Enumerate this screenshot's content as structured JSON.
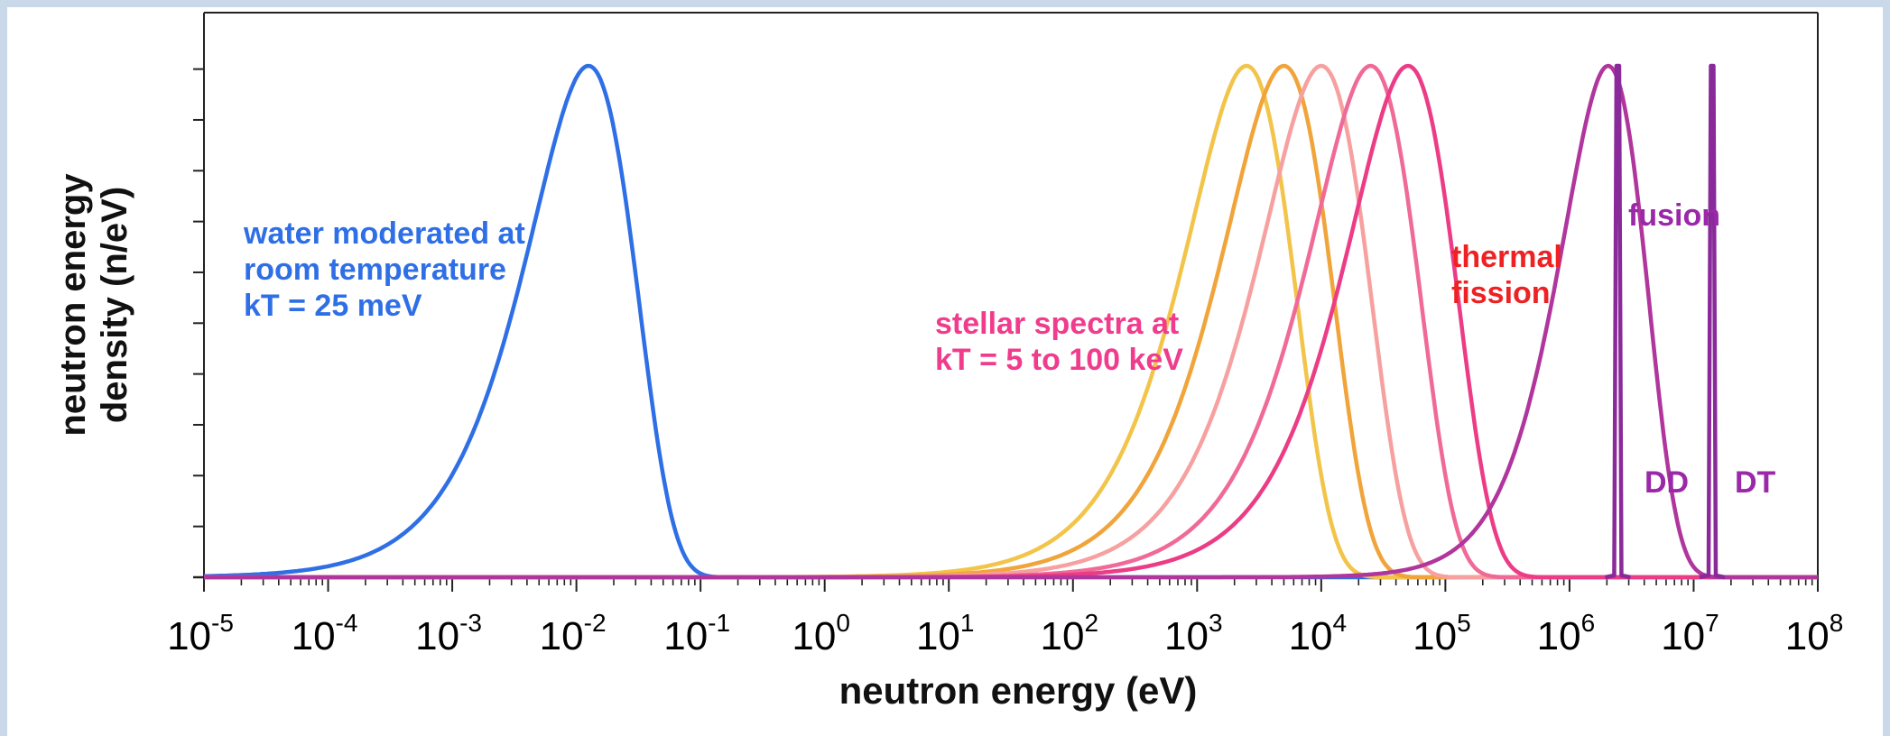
{
  "chart_data": {
    "type": "line",
    "xscale": "log",
    "xlim": [
      1e-05,
      100000000.0
    ],
    "xlabel": "neutron energy (eV)",
    "ylabel_lines": [
      "neutron energy",
      "density (n/eV)"
    ],
    "x_ticks": [
      {
        "base": "10",
        "exp": "-5"
      },
      {
        "base": "10",
        "exp": "-4"
      },
      {
        "base": "10",
        "exp": "-3"
      },
      {
        "base": "10",
        "exp": "-2"
      },
      {
        "base": "10",
        "exp": "-1"
      },
      {
        "base": "10",
        "exp": "0"
      },
      {
        "base": "10",
        "exp": "1"
      },
      {
        "base": "10",
        "exp": "2"
      },
      {
        "base": "10",
        "exp": "3"
      },
      {
        "base": "10",
        "exp": "4"
      },
      {
        "base": "10",
        "exp": "5"
      },
      {
        "base": "10",
        "exp": "6"
      },
      {
        "base": "10",
        "exp": "7"
      },
      {
        "base": "10",
        "exp": "8"
      }
    ],
    "y_tick_count": 11,
    "grid": false,
    "series": [
      {
        "kind": "maxwellian",
        "peak_eV": 0.0125,
        "color": "#2f6fe6"
      },
      {
        "kind": "maxwellian",
        "peak_eV": 2500,
        "color": "#f2c44a"
      },
      {
        "kind": "maxwellian",
        "peak_eV": 5000,
        "color": "#f0a43a"
      },
      {
        "kind": "maxwellian",
        "peak_eV": 10000,
        "color": "#f7a0a0"
      },
      {
        "kind": "maxwellian",
        "peak_eV": 25000,
        "color": "#f06a98"
      },
      {
        "kind": "maxwellian",
        "peak_eV": 50000,
        "color": "#ec3c86"
      },
      {
        "kind": "watt",
        "peak_eV": 650000,
        "color": "#b0359c"
      },
      {
        "kind": "line",
        "peak_eV": 2450000,
        "color": "#8a2a9a"
      },
      {
        "kind": "line",
        "peak_eV": 14100000,
        "color": "#8a2a9a"
      }
    ],
    "annotations": [
      {
        "id": "water",
        "color": "#2f6fe6",
        "lines": [
          "water moderated at",
          "room temperature",
          "kT = 25 meV"
        ]
      },
      {
        "id": "stellar",
        "color": "#f03c8c",
        "lines": [
          "stellar spectra at",
          "kT = 5 to 100 keV"
        ]
      },
      {
        "id": "fission",
        "color": "#ee2222",
        "lines": [
          "thermal",
          "fission"
        ]
      },
      {
        "id": "fusion",
        "color": "#9a28a8",
        "lines": [
          "fusion"
        ]
      },
      {
        "id": "dd",
        "color": "#9a28a8",
        "lines": [
          "DD"
        ]
      },
      {
        "id": "dt",
        "color": "#9a28a8",
        "lines": [
          "DT"
        ]
      }
    ]
  }
}
